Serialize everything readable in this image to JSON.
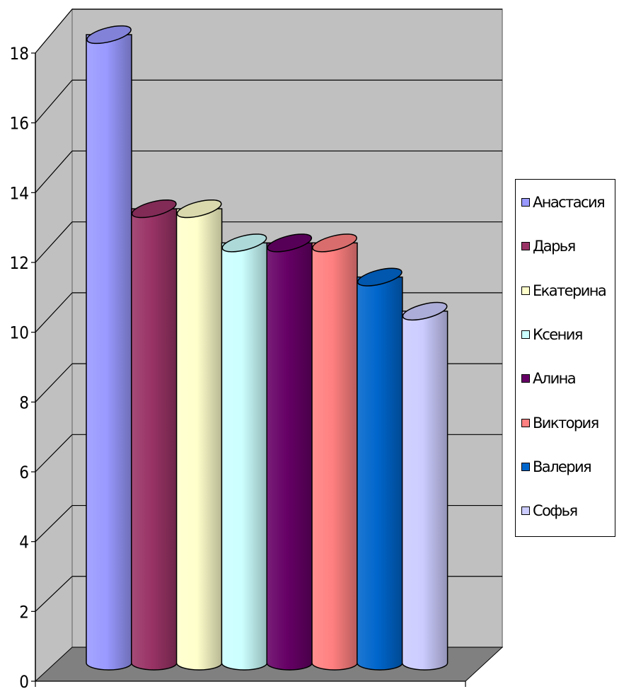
{
  "chart_data": {
    "type": "bar",
    "categories": [
      "Анастасия",
      "Дарья",
      "Екатерина",
      "Ксения",
      "Алина",
      "Виктория",
      "Валерия",
      "Софья"
    ],
    "values": [
      18.4,
      13.3,
      13.3,
      12.3,
      12.3,
      12.3,
      11.3,
      10.3
    ],
    "colors": [
      "#9999ff",
      "#993366",
      "#ffffcc",
      "#ccffff",
      "#660066",
      "#ff8080",
      "#0066cc",
      "#ccccff"
    ],
    "yticks": [
      "0",
      "2",
      "4",
      "6",
      "8",
      "10",
      "12",
      "14",
      "16",
      "18"
    ],
    "ylim": [
      0,
      18
    ],
    "grid": true,
    "legend": "right",
    "title": "",
    "xlabel": "",
    "ylabel": ""
  }
}
